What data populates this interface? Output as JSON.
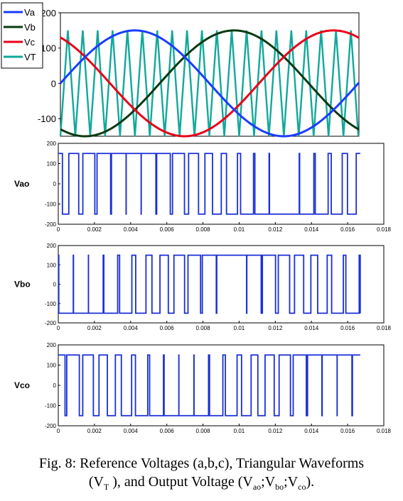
{
  "caption": {
    "line1": "Fig. 8: Reference Voltages (a,b,c), Triangular Waveforms",
    "line2_prefix": "(V",
    "vt_sub": "T",
    "line2_mid": " ), and Output Voltage (V",
    "sub_ao": "ao",
    "sep1": ";V",
    "sub_bo": "bo",
    "sep2": ";V",
    "sub_co": "co",
    "line2_end": ")."
  },
  "chart_data": [
    {
      "type": "line",
      "x_unit": "s",
      "xlim": [
        0,
        0.0167
      ],
      "ylim": [
        -150,
        200
      ],
      "yticks": [
        "200",
        "100",
        "0",
        "-100"
      ],
      "legend": {
        "placement": "top-left",
        "entries": [
          "Va",
          "Vb",
          "Vc",
          "VT"
        ]
      },
      "frequency_hz": 60,
      "amplitude": 150,
      "carrier_amplitude": 150,
      "carrier_cycles": 20,
      "series": [
        {
          "name": "Va",
          "color": "#1a3cff",
          "phase_deg": 0
        },
        {
          "name": "Vb",
          "color": "#0a3a12",
          "phase_deg": -120
        },
        {
          "name": "Vc",
          "color": "#e8001a",
          "phase_deg": 120
        },
        {
          "name": "VT",
          "color": "#12a89a",
          "waveform": "triangular carrier"
        }
      ]
    },
    {
      "type": "line",
      "ylabel": "Vao",
      "series_color": "#1a2fd6",
      "xlim": [
        0,
        0.018
      ],
      "ylim": [
        -200,
        200
      ],
      "yticks": [
        "200",
        "100",
        "0",
        "-100",
        "-200"
      ],
      "xticks": [
        "0",
        "0.002",
        "0.004",
        "0.006",
        "0.008",
        "0.01",
        "0.012",
        "0.014",
        "0.016",
        "0.018"
      ],
      "levels": [
        150,
        -150
      ],
      "source": "sign(Va - VT)"
    },
    {
      "type": "line",
      "ylabel": "Vbo",
      "series_color": "#1a2fd6",
      "xlim": [
        0,
        0.018
      ],
      "ylim": [
        -200,
        200
      ],
      "yticks": [
        "200",
        "100",
        "0",
        "-100",
        "-200"
      ],
      "xticks": [
        "0",
        "0.002",
        "0.004",
        "0.006",
        "0.008",
        "0.01",
        "0.012",
        "0.014",
        "0.016",
        "0.018"
      ],
      "levels": [
        150,
        -150
      ],
      "source": "sign(Vb - VT)"
    },
    {
      "type": "line",
      "ylabel": "Vco",
      "series_color": "#1a2fd6",
      "xlim": [
        0,
        0.018
      ],
      "ylim": [
        -200,
        200
      ],
      "yticks": [
        "200",
        "100",
        "0",
        "-100",
        "-200"
      ],
      "xticks": [
        "0",
        "0.002",
        "0.004",
        "0.006",
        "0.008",
        "0.01",
        "0.012",
        "0.014",
        "0.016",
        "0.018"
      ],
      "levels": [
        150,
        -150
      ],
      "source": "sign(Vc - VT)"
    }
  ]
}
